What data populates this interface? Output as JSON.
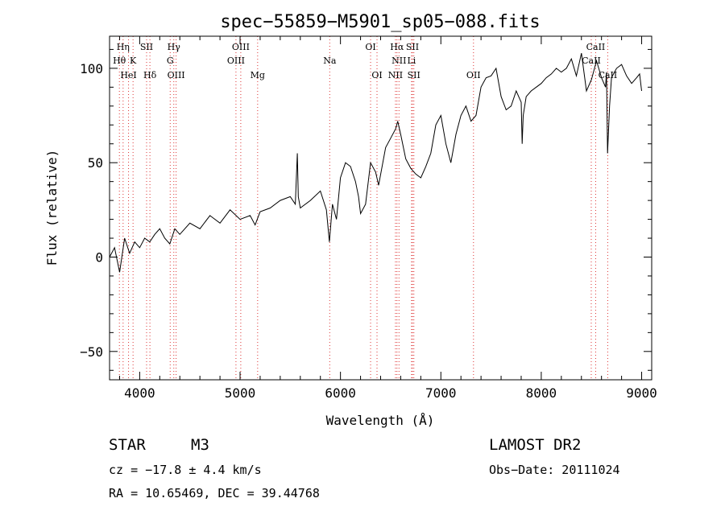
{
  "chart_data": {
    "type": "line",
    "title": "spec−55859−M5901_sp05−088.fits",
    "xlabel": "Wavelength (Å)",
    "ylabel": "Flux (relative)",
    "xlim": [
      3700,
      9100
    ],
    "ylim": [
      -65,
      117
    ],
    "xticks": [
      4000,
      5000,
      6000,
      7000,
      8000,
      9000
    ],
    "yticks": [
      -50,
      0,
      50,
      100
    ],
    "ytick_labels": [
      "−50",
      "0",
      "50",
      "100"
    ],
    "series": [
      {
        "x": [
          3700,
          3750,
          3800,
          3850,
          3900,
          3950,
          4000,
          4050,
          4100,
          4150,
          4200,
          4250,
          4300,
          4350,
          4400,
          4500,
          4600,
          4700,
          4800,
          4900,
          5000,
          5100,
          5150,
          5200,
          5300,
          5400,
          5500,
          5550,
          5570,
          5580,
          5600,
          5700,
          5800,
          5860,
          5890,
          5920,
          5960,
          6000,
          6050,
          6100,
          6150,
          6180,
          6200,
          6250,
          6300,
          6350,
          6380,
          6450,
          6500,
          6550,
          6570,
          6600,
          6650,
          6700,
          6750,
          6800,
          6850,
          6900,
          6950,
          7000,
          7050,
          7100,
          7150,
          7200,
          7250,
          7300,
          7350,
          7400,
          7450,
          7500,
          7550,
          7600,
          7650,
          7700,
          7750,
          7800,
          7810,
          7820,
          7850,
          7900,
          7950,
          8000,
          8050,
          8100,
          8150,
          8200,
          8250,
          8300,
          8350,
          8400,
          8450,
          8500,
          8530,
          8550,
          8600,
          8640,
          8650,
          8660,
          8680,
          8700,
          8750,
          8800,
          8850,
          8900,
          8950,
          8980,
          9000
        ],
        "y": [
          0,
          5,
          -8,
          10,
          2,
          8,
          5,
          10,
          8,
          12,
          15,
          10,
          7,
          15,
          12,
          18,
          15,
          22,
          18,
          25,
          20,
          22,
          17,
          24,
          26,
          30,
          32,
          28,
          55,
          32,
          26,
          30,
          35,
          25,
          8,
          28,
          20,
          42,
          50,
          48,
          40,
          32,
          23,
          28,
          50,
          45,
          38,
          58,
          63,
          68,
          72,
          65,
          52,
          47,
          44,
          42,
          48,
          55,
          70,
          75,
          60,
          50,
          65,
          75,
          80,
          72,
          75,
          90,
          95,
          96,
          100,
          85,
          78,
          80,
          88,
          82,
          60,
          75,
          85,
          88,
          90,
          92,
          95,
          97,
          100,
          98,
          100,
          105,
          96,
          108,
          88,
          94,
          100,
          104,
          95,
          90,
          98,
          55,
          80,
          95,
          100,
          102,
          96,
          92,
          95,
          97,
          88
        ]
      }
    ],
    "lines": [
      {
        "label": "Hη",
        "wl": 3835,
        "row": 1
      },
      {
        "label": "Hθ",
        "wl": 3798,
        "row": 2
      },
      {
        "label": "K",
        "wl": 3934,
        "row": 2
      },
      {
        "label": "HeI",
        "wl": 3889,
        "row": 3
      },
      {
        "label": "SII",
        "wl": 4069,
        "row": 1
      },
      {
        "label": "Hδ",
        "wl": 4102,
        "row": 3
      },
      {
        "label": "Hγ",
        "wl": 4340,
        "row": 1
      },
      {
        "label": "G",
        "wl": 4304,
        "row": 2
      },
      {
        "label": "OIII",
        "wl": 4363,
        "row": 3
      },
      {
        "label": "OIII",
        "wl": 5007,
        "row": 1
      },
      {
        "label": "OIII",
        "wl": 4959,
        "row": 2
      },
      {
        "label": "Mg",
        "wl": 5175,
        "row": 3
      },
      {
        "label": "Na",
        "wl": 5893,
        "row": 2
      },
      {
        "label": "OI",
        "wl": 6300,
        "row": 1
      },
      {
        "label": "OI",
        "wl": 6364,
        "row": 3
      },
      {
        "label": "Hα",
        "wl": 6563,
        "row": 1
      },
      {
        "label": "SII",
        "wl": 6717,
        "row": 1
      },
      {
        "label": "NII",
        "wl": 6583,
        "row": 2
      },
      {
        "label": "Li",
        "wl": 6708,
        "row": 2
      },
      {
        "label": "NII",
        "wl": 6548,
        "row": 3
      },
      {
        "label": "SII",
        "wl": 6731,
        "row": 3
      },
      {
        "label": "OII",
        "wl": 7325,
        "row": 3
      },
      {
        "label": "CaII",
        "wl": 8542,
        "row": 1
      },
      {
        "label": "CaII",
        "wl": 8498,
        "row": 2
      },
      {
        "label": "CaII",
        "wl": 8662,
        "row": 3
      }
    ]
  },
  "info": {
    "object_class": "STAR",
    "subclass": "M3",
    "survey": "LAMOST DR2",
    "cz": "cz = −17.8 ± 4.4 km/s",
    "obs_date": "Obs−Date: 20111024",
    "coords": "RA =  10.65469, DEC =  39.44768"
  }
}
